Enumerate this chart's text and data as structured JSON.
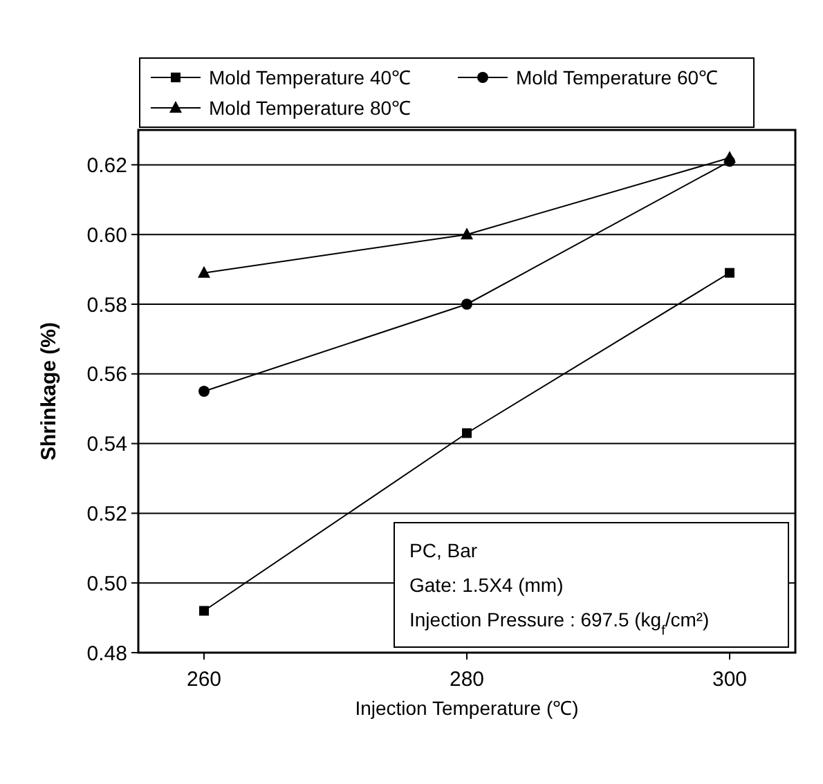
{
  "chart_data": {
    "type": "line",
    "xlabel": "Injection Temperature (℃)",
    "ylabel": "Shrinkage (%)",
    "x": [
      260,
      280,
      300
    ],
    "series": [
      {
        "name": "Mold Temperature 40℃",
        "color": "#000000",
        "values": [
          0.492,
          0.543,
          0.589
        ],
        "marker": "square"
      },
      {
        "name": "Mold Temperature 60℃",
        "color": "#000000",
        "values": [
          0.555,
          0.58,
          0.621
        ],
        "marker": "circle"
      },
      {
        "name": "Mold Temperature 80℃",
        "color": "#000000",
        "values": [
          0.589,
          0.6,
          0.622
        ],
        "marker": "triangle"
      }
    ],
    "xlim": [
      255,
      305
    ],
    "xticks": [
      260,
      280,
      300
    ],
    "ylim": [
      0.48,
      0.63
    ],
    "yticks": [
      {
        "value": 0.48,
        "label": "0.48"
      },
      {
        "value": 0.5,
        "label": "0.50"
      },
      {
        "value": 0.52,
        "label": "0.52"
      },
      {
        "value": 0.54,
        "label": "0.54"
      },
      {
        "value": 0.56,
        "label": "0.56"
      },
      {
        "value": 0.58,
        "label": "0.58"
      },
      {
        "value": 0.6,
        "label": "0.60"
      },
      {
        "value": 0.62,
        "label": "0.62"
      }
    ],
    "grid": "y",
    "legend": "top",
    "line_style": "solid",
    "annotations": [
      "PC, Bar",
      "Gate: 1.5X4 (mm)",
      "Injection Pressure : 697.5 (kg$_{f}$/cm²)"
    ]
  }
}
